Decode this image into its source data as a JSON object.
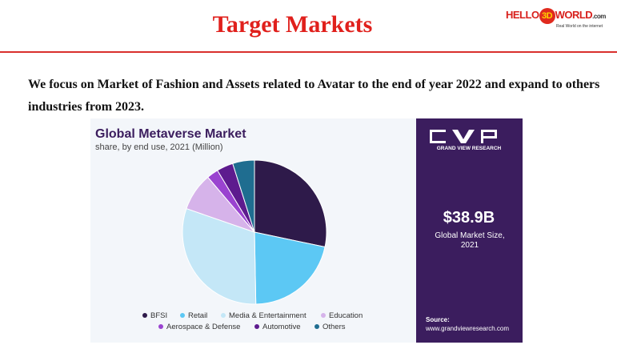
{
  "header": {
    "title": "Target Markets",
    "logo": {
      "part1": "HELLO",
      "part2": "3D",
      "part3": "WORLD",
      "suffix": ".com",
      "tagline": "Real World on the internet"
    }
  },
  "body": {
    "paragraph": "We focus on Market of Fashion and Assets related to Avatar to the end of year 2022 and expand to others industries from 2023."
  },
  "chart_data": {
    "type": "pie",
    "title": "Global Metaverse Market",
    "subtitle": "share, by end use, 2021 (Million)",
    "categories": [
      "BFSI",
      "Retail",
      "Media & Entertainment",
      "Education",
      "Aerospace & Defense",
      "Automotive",
      "Others"
    ],
    "values": [
      28.3,
      21.4,
      30.6,
      8.5,
      2.6,
      3.7,
      4.9
    ],
    "colors": [
      "#2e1a4a",
      "#5cc8f4",
      "#c4e7f7",
      "#d6b3ea",
      "#9a43d0",
      "#5d1b8e",
      "#1f6d90"
    ],
    "side_panel": {
      "brand": "GRAND VIEW RESEARCH",
      "market_size": "$38.9B",
      "market_size_label": "Global Market Size, 2021",
      "source_label": "Source:",
      "source_url": "www.grandviewresearch.com"
    }
  }
}
